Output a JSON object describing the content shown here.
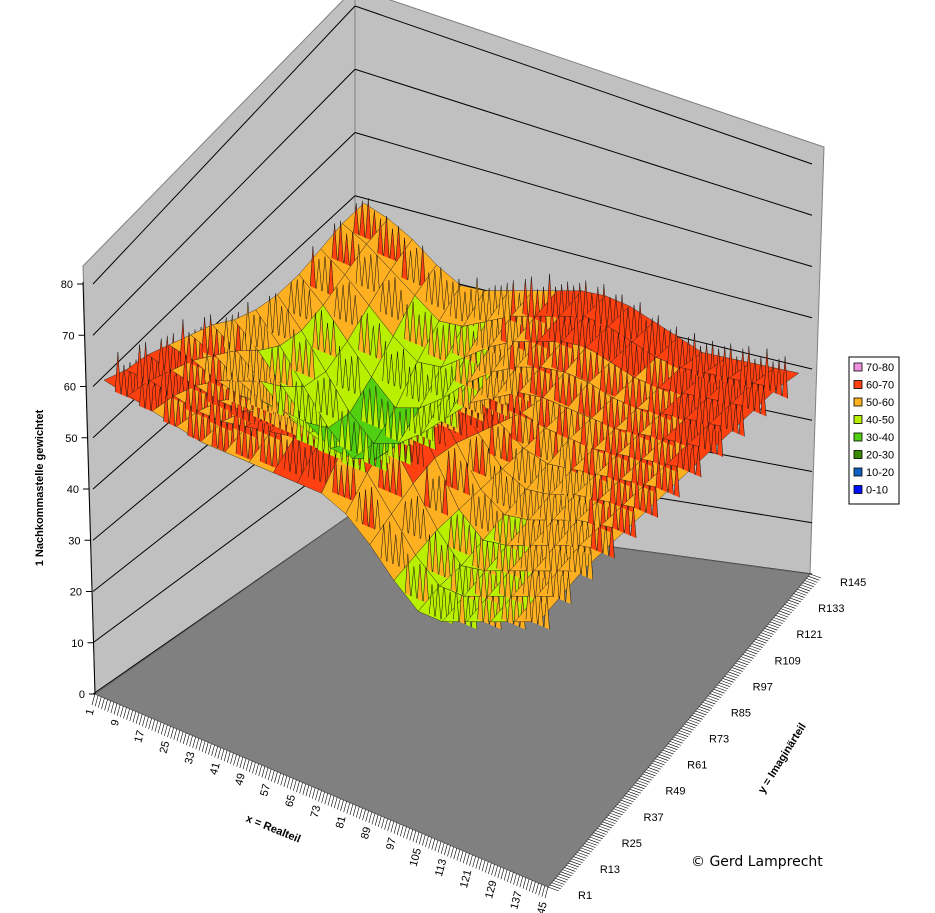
{
  "chart_data": {
    "type": "surface",
    "title": "",
    "zlabel": "1 Nachkommastelle gewichtet",
    "xlabel": "x = Realteil",
    "ylabel": "y = Imaginärteil",
    "zlim": [
      0,
      80
    ],
    "z_ticks": [
      "0",
      "10",
      "20",
      "30",
      "40",
      "50",
      "60",
      "70",
      "80"
    ],
    "x_ticks": [
      "1",
      "9",
      "17",
      "25",
      "33",
      "41",
      "49",
      "57",
      "65",
      "73",
      "81",
      "89",
      "97",
      "105",
      "113",
      "121",
      "129",
      "137",
      "145"
    ],
    "y_ticks": [
      "R1",
      "R13",
      "R25",
      "R37",
      "R49",
      "R61",
      "R73",
      "R85",
      "R97",
      "R109",
      "R121",
      "R133",
      "R145"
    ],
    "grid": true,
    "legend_position": "right",
    "legend": [
      {
        "label": "70-80",
        "color": "#f090e0"
      },
      {
        "label": "60-70",
        "color": "#ff4010"
      },
      {
        "label": "50-60",
        "color": "#ffb020"
      },
      {
        "label": "40-50",
        "color": "#b8f000"
      },
      {
        "label": "30-40",
        "color": "#50d010"
      },
      {
        "label": "20-30",
        "color": "#3a8a00"
      },
      {
        "label": "10-20",
        "color": "#1060c0"
      },
      {
        "label": "0-10",
        "color": "#0010ff"
      }
    ],
    "surface_rows": [
      [
        61,
        60,
        58,
        55,
        53,
        54,
        56,
        58,
        60,
        62,
        63,
        63,
        62,
        61,
        60,
        61,
        62,
        63,
        64
      ],
      [
        60,
        58,
        55,
        52,
        49,
        50,
        53,
        56,
        58,
        60,
        62,
        62,
        61,
        60,
        60,
        61,
        62,
        63,
        64
      ],
      [
        58,
        55,
        51,
        47,
        44,
        45,
        49,
        53,
        56,
        58,
        60,
        61,
        60,
        59,
        59,
        60,
        61,
        62,
        63
      ],
      [
        56,
        52,
        47,
        42,
        38,
        40,
        44,
        49,
        53,
        56,
        58,
        59,
        59,
        58,
        58,
        59,
        60,
        61,
        62
      ],
      [
        55,
        50,
        44,
        38,
        34,
        36,
        40,
        45,
        50,
        53,
        56,
        57,
        57,
        57,
        57,
        58,
        59,
        60,
        61
      ],
      [
        55,
        50,
        44,
        38,
        34,
        36,
        41,
        47,
        52,
        56,
        58,
        57,
        56,
        56,
        56,
        57,
        58,
        59,
        60
      ],
      [
        56,
        52,
        47,
        42,
        39,
        42,
        47,
        53,
        58,
        62,
        61,
        58,
        55,
        54,
        55,
        56,
        57,
        58,
        59
      ],
      [
        58,
        55,
        51,
        47,
        45,
        48,
        53,
        58,
        62,
        66,
        64,
        59,
        54,
        52,
        53,
        55,
        56,
        57,
        58
      ],
      [
        59,
        57,
        54,
        52,
        51,
        54,
        58,
        62,
        66,
        70,
        67,
        60,
        53,
        50,
        51,
        53,
        55,
        56,
        57
      ],
      [
        60,
        59,
        57,
        56,
        56,
        58,
        61,
        64,
        67,
        71,
        68,
        60,
        52,
        48,
        49,
        51,
        53,
        55,
        56
      ],
      [
        61,
        60,
        59,
        58,
        58,
        60,
        62,
        64,
        66,
        68,
        65,
        58,
        51,
        46,
        47,
        49,
        51,
        53,
        55
      ],
      [
        61,
        61,
        60,
        59,
        59,
        60,
        61,
        62,
        63,
        64,
        61,
        55,
        49,
        45,
        45,
        47,
        49,
        51,
        53
      ],
      [
        62,
        61,
        60,
        59,
        58,
        58,
        58,
        58,
        58,
        58,
        56,
        52,
        47,
        43,
        43,
        45,
        47,
        49,
        51
      ]
    ]
  },
  "copyright": "© Gerd Lamprecht"
}
